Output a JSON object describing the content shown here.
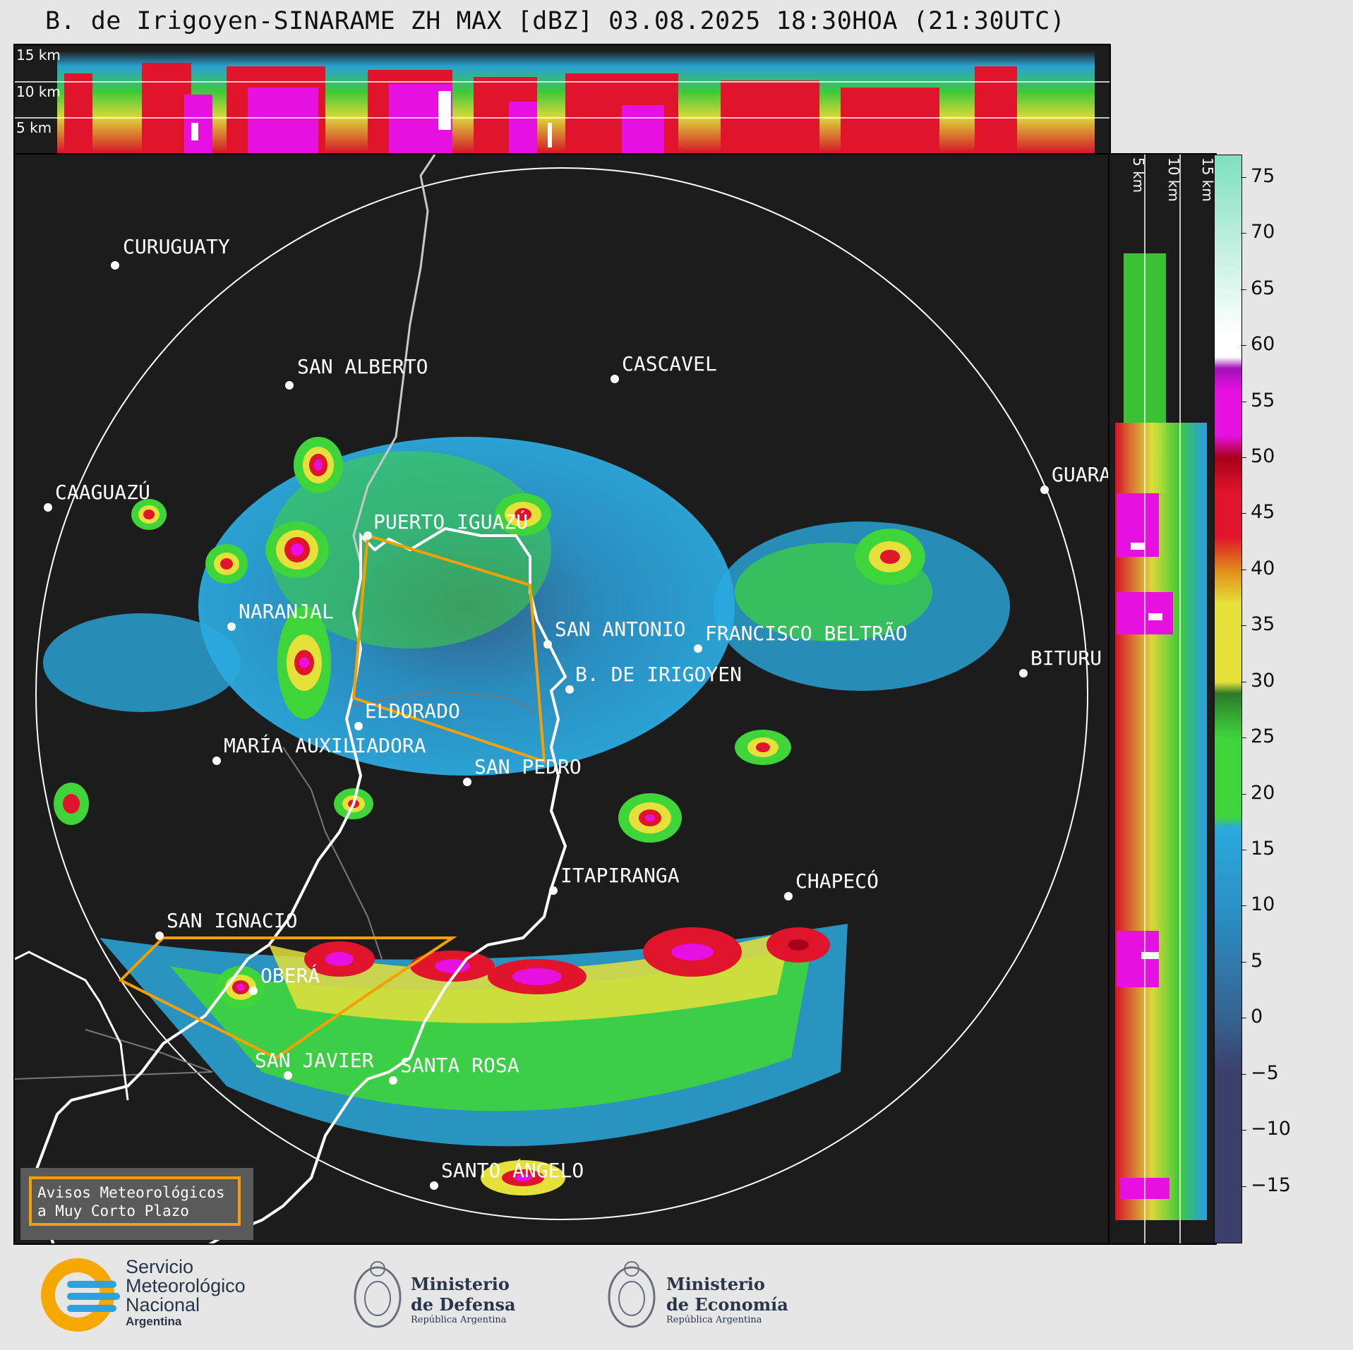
{
  "title": "B. de Irigoyen-SINARAME ZH MAX [dBZ] 03.08.2025 18:30HOA (21:30UTC)",
  "top_panel": {
    "levels": [
      "15 km",
      "10 km",
      "5 km"
    ]
  },
  "side_panel": {
    "levels": [
      "5 km",
      "10 km",
      "15 km"
    ]
  },
  "colorbar": {
    "unit": "dBZ",
    "ticks": [
      75,
      70,
      65,
      60,
      55,
      50,
      45,
      40,
      35,
      30,
      25,
      20,
      15,
      10,
      5,
      0,
      -5,
      -10,
      -15
    ],
    "tick_labels": [
      "75",
      "70",
      "65",
      "60",
      "55",
      "50",
      "45",
      "40",
      "35",
      "30",
      "25",
      "20",
      "15",
      "10",
      "5",
      "0",
      "−5",
      "−10",
      "−15"
    ],
    "range": [
      -20,
      77
    ],
    "colors": {
      "neg": "#3b3f6a",
      "blue_low": "#35638f",
      "blue": "#2a92c6",
      "cyan": "#2ba9dd",
      "green": "#3fd43a",
      "dark_green": "#2c7a28",
      "yellow": "#e5e13a",
      "orange": "#e08b1a",
      "red": "#e0142a",
      "dark_red": "#a80018",
      "magenta": "#e610e0",
      "purple": "#a010b8",
      "white": "#ffffff",
      "mint": "#7fe0bf"
    }
  },
  "cities": [
    {
      "name": "CURUGUATY"
    },
    {
      "name": "SAN ALBERTO"
    },
    {
      "name": "CASCAVEL"
    },
    {
      "name": "CAAGUAZÚ"
    },
    {
      "name": "GUARA"
    },
    {
      "name": "PUERTO IGUAZÚ"
    },
    {
      "name": "NARANJAL"
    },
    {
      "name": "SAN ANTONIO"
    },
    {
      "name": "FRANCISCO BELTRÃO"
    },
    {
      "name": "BITURU"
    },
    {
      "name": "B. DE IRIGOYEN"
    },
    {
      "name": "ELDORADO"
    },
    {
      "name": "MARÍA AUXILIADORA"
    },
    {
      "name": "SAN PEDRO"
    },
    {
      "name": "ITAPIRANGA"
    },
    {
      "name": "CHAPECÓ"
    },
    {
      "name": "SAN IGNACIO"
    },
    {
      "name": "OBERÁ"
    },
    {
      "name": "SAN JAVIER"
    },
    {
      "name": "SANTA ROSA"
    },
    {
      "name": "SANTO ÁNGELO"
    }
  ],
  "warning_box": {
    "line1": "Avisos Meteorológicos",
    "line2": "a Muy Corto Plazo",
    "border_color": "#f5a000"
  },
  "logos": {
    "smn": {
      "line1": "Servicio",
      "line2": "Meteorológico",
      "line3": "Nacional",
      "line4": "Argentina"
    },
    "defensa": {
      "line1": "Ministerio",
      "line2": "de Defensa",
      "line3": "República Argentina"
    },
    "economia": {
      "line1": "Ministerio",
      "line2": "de Economía",
      "line3": "República Argentina"
    }
  }
}
